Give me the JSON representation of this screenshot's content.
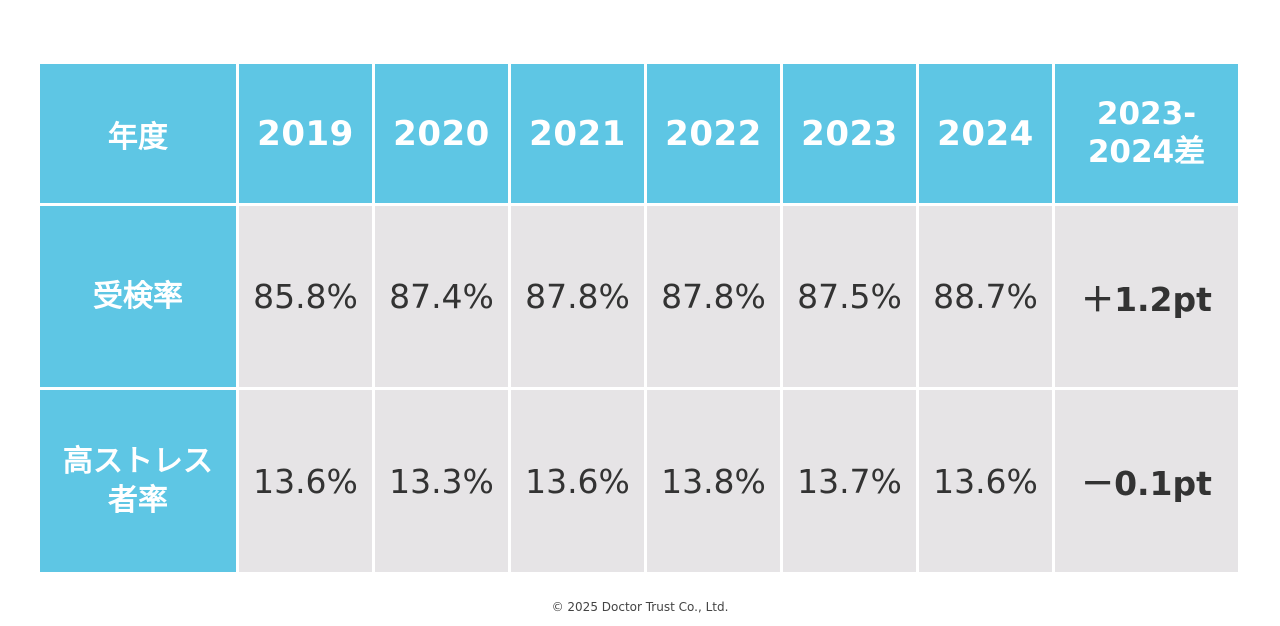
{
  "chart_data": {
    "type": "table",
    "header": {
      "row_label": "年度",
      "years": [
        "2019",
        "2020",
        "2021",
        "2022",
        "2023",
        "2024"
      ],
      "diff_label_line1": "2023-",
      "diff_label_line2": "2024差"
    },
    "rows": [
      {
        "label_line1": "受検率",
        "label_line2": "",
        "values": [
          "85.8%",
          "87.4%",
          "87.8%",
          "87.8%",
          "87.5%",
          "88.7%"
        ],
        "diff": "＋1.2pt"
      },
      {
        "label_line1": "高ストレス",
        "label_line2": "者率",
        "values": [
          "13.6%",
          "13.3%",
          "13.6%",
          "13.8%",
          "13.7%",
          "13.6%"
        ],
        "diff": "－0.1pt"
      }
    ]
  },
  "footer": {
    "copyright": "©  2025 Doctor Trust Co., Ltd."
  },
  "colors": {
    "header_bg": "#5ec6e4",
    "cell_bg": "#e6e4e6",
    "text_dark": "#333333"
  }
}
